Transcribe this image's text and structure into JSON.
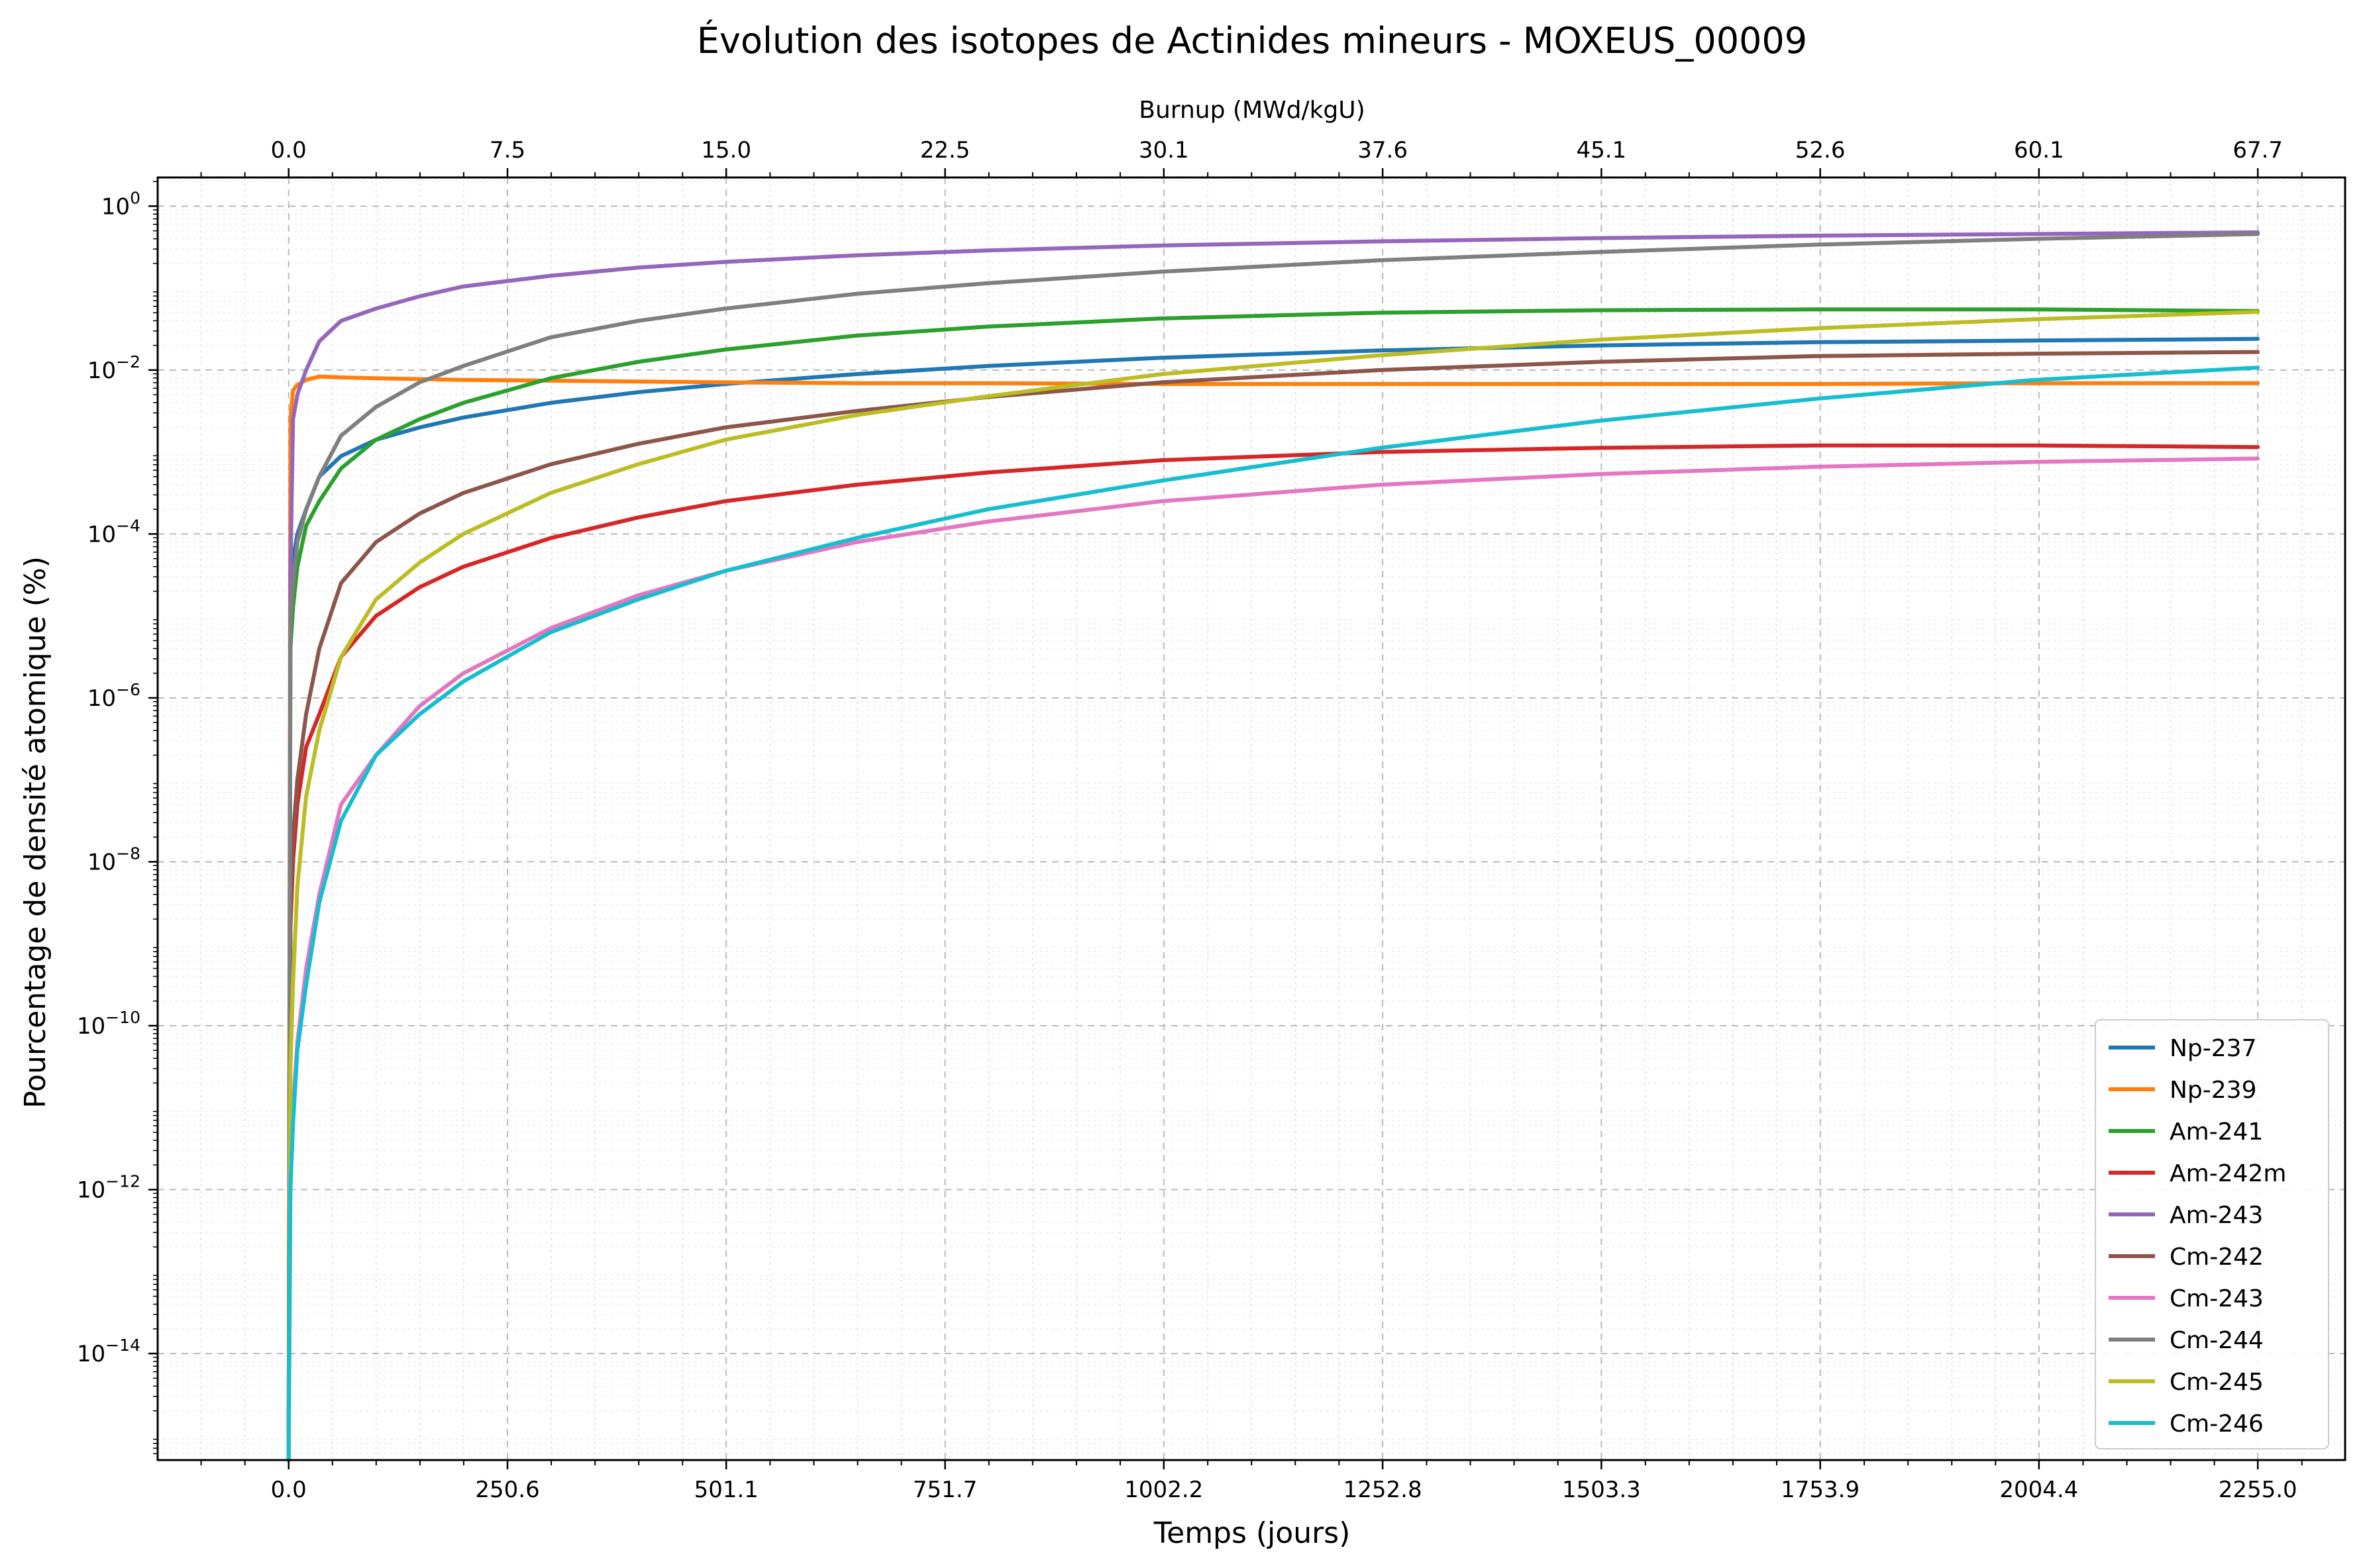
{
  "chart_data": {
    "type": "line",
    "title": "Évolution des isotopes de Actinides mineurs - MOXEUS_00009",
    "xlabel": "Temps (jours)",
    "ylabel": "Pourcentage de densité atomique (%)",
    "x2label": "Burnup (MWd/kgU)",
    "xlim": [
      -150,
      2355
    ],
    "ylog": true,
    "ylim_log10": [
      -15.3,
      0.35
    ],
    "x_ticks": [
      0,
      250.6,
      501.1,
      751.7,
      1002.2,
      1252.8,
      1503.3,
      1753.9,
      2004.4,
      2255.0
    ],
    "x_tick_labels": [
      "0.0",
      "250.6",
      "501.1",
      "751.7",
      "1002.2",
      "1252.8",
      "1503.3",
      "1753.9",
      "2004.4",
      "2255.0"
    ],
    "x2_tick_labels": [
      "0.0",
      "7.5",
      "15.0",
      "22.5",
      "30.1",
      "37.6",
      "45.1",
      "52.6",
      "60.1",
      "67.7"
    ],
    "y_ticks_exp": [
      0,
      -2,
      -4,
      -6,
      -8,
      -10,
      -12,
      -14
    ],
    "y_tick_base": "10",
    "y_tick_exps": [
      "0",
      "−2",
      "−4",
      "−6",
      "−8",
      "−10",
      "−12",
      "−14"
    ],
    "grid": true,
    "legend_position": "lower-right",
    "x": [
      0,
      2,
      5,
      10,
      20,
      35,
      60,
      100,
      150,
      200,
      300,
      400,
      500,
      650,
      800,
      1000,
      1250,
      1500,
      1750,
      2000,
      2255
    ],
    "series": [
      {
        "name": "Np-237",
        "color": "#1f77b4",
        "log10_values": [
          -15.5,
          -4.7,
          -4.3,
          -4.0,
          -3.7,
          -3.3,
          -3.05,
          -2.85,
          -2.7,
          -2.58,
          -2.4,
          -2.27,
          -2.17,
          -2.05,
          -1.95,
          -1.85,
          -1.76,
          -1.7,
          -1.66,
          -1.64,
          -1.62
        ]
      },
      {
        "name": "Np-239",
        "color": "#ff7f0e",
        "log10_values": [
          -15.5,
          -2.6,
          -2.25,
          -2.18,
          -2.12,
          -2.08,
          -2.09,
          -2.1,
          -2.11,
          -2.12,
          -2.13,
          -2.14,
          -2.15,
          -2.16,
          -2.16,
          -2.17,
          -2.17,
          -2.17,
          -2.17,
          -2.16,
          -2.16
        ]
      },
      {
        "name": "Am-241",
        "color": "#2ca02c",
        "log10_values": [
          -15.5,
          -5.4,
          -4.9,
          -4.4,
          -3.9,
          -3.6,
          -3.2,
          -2.85,
          -2.6,
          -2.4,
          -2.1,
          -1.9,
          -1.75,
          -1.58,
          -1.47,
          -1.37,
          -1.3,
          -1.27,
          -1.26,
          -1.26,
          -1.28
        ]
      },
      {
        "name": "Am-242m",
        "color": "#d62728",
        "log10_values": [
          -15.5,
          -8.8,
          -8.0,
          -7.3,
          -6.6,
          -6.2,
          -5.5,
          -5.0,
          -4.65,
          -4.4,
          -4.05,
          -3.8,
          -3.6,
          -3.4,
          -3.25,
          -3.1,
          -3.0,
          -2.95,
          -2.92,
          -2.92,
          -2.94
        ]
      },
      {
        "name": "Am-243",
        "color": "#9467bd",
        "log10_values": [
          -15.5,
          -4.5,
          -2.6,
          -2.3,
          -2.0,
          -1.65,
          -1.4,
          -1.25,
          -1.1,
          -0.98,
          -0.85,
          -0.75,
          -0.68,
          -0.6,
          -0.54,
          -0.48,
          -0.43,
          -0.39,
          -0.36,
          -0.34,
          -0.32
        ]
      },
      {
        "name": "Cm-242",
        "color": "#8c564b",
        "log10_values": [
          -15.5,
          -8.5,
          -7.7,
          -7.0,
          -6.2,
          -5.4,
          -4.6,
          -4.1,
          -3.75,
          -3.5,
          -3.15,
          -2.9,
          -2.7,
          -2.5,
          -2.33,
          -2.15,
          -2.0,
          -1.9,
          -1.83,
          -1.8,
          -1.78
        ]
      },
      {
        "name": "Cm-243",
        "color": "#e377c2",
        "log10_values": [
          -15.5,
          -11.8,
          -11.0,
          -10.2,
          -9.3,
          -8.4,
          -7.3,
          -6.7,
          -6.1,
          -5.7,
          -5.15,
          -4.75,
          -4.45,
          -4.1,
          -3.85,
          -3.6,
          -3.4,
          -3.27,
          -3.18,
          -3.12,
          -3.08
        ]
      },
      {
        "name": "Cm-244",
        "color": "#7f7f7f",
        "log10_values": [
          -15.5,
          -5.0,
          -4.6,
          -4.1,
          -3.7,
          -3.3,
          -2.8,
          -2.45,
          -2.15,
          -1.95,
          -1.6,
          -1.4,
          -1.25,
          -1.07,
          -0.94,
          -0.8,
          -0.66,
          -0.56,
          -0.47,
          -0.4,
          -0.34
        ]
      },
      {
        "name": "Cm-245",
        "color": "#bcbd22",
        "log10_values": [
          -15.5,
          -10.5,
          -9.5,
          -8.3,
          -7.2,
          -6.4,
          -5.5,
          -4.8,
          -4.35,
          -4.0,
          -3.5,
          -3.15,
          -2.85,
          -2.55,
          -2.32,
          -2.05,
          -1.82,
          -1.63,
          -1.49,
          -1.38,
          -1.29
        ]
      },
      {
        "name": "Cm-246",
        "color": "#17becf",
        "log10_values": [
          -15.5,
          -12.0,
          -11.2,
          -10.3,
          -9.5,
          -8.5,
          -7.5,
          -6.7,
          -6.2,
          -5.8,
          -5.2,
          -4.8,
          -4.45,
          -4.05,
          -3.7,
          -3.35,
          -2.95,
          -2.62,
          -2.35,
          -2.12,
          -1.97
        ]
      }
    ]
  }
}
